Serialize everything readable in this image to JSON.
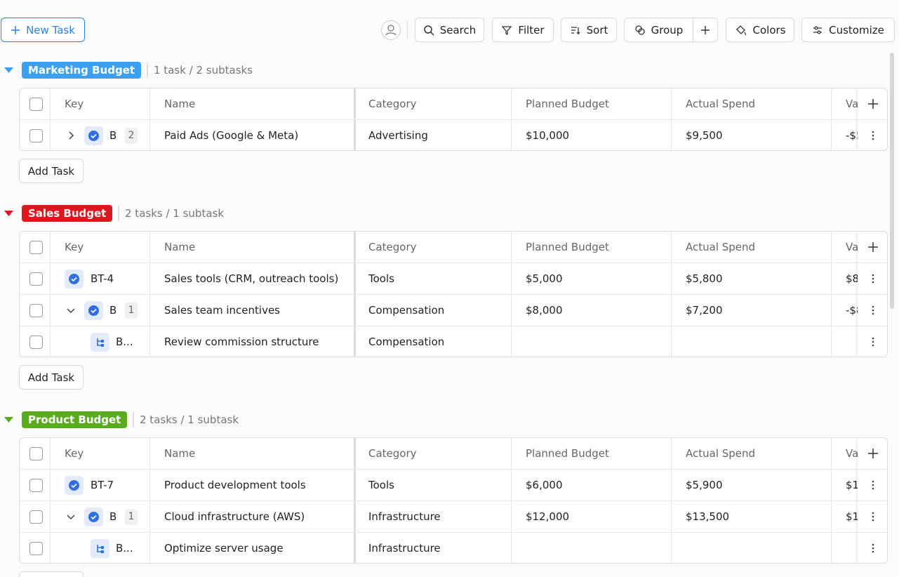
{
  "toolbar": {
    "new_task": "New Task",
    "search": "Search",
    "filter": "Filter",
    "sort": "Sort",
    "group": "Group",
    "colors": "Colors",
    "customize": "Customize"
  },
  "columns": [
    "Key",
    "Name",
    "Category",
    "Planned Budget",
    "Actual Spend",
    "Va"
  ],
  "add_task": "Add Task",
  "groups": [
    {
      "name": "Marketing Budget",
      "color": "#3d9ff0",
      "summary": "1 task / 2 subtasks",
      "rows": [
        {
          "key": "B",
          "subtask_count": 2,
          "name": "Paid Ads (Google & Meta)",
          "category": "Advertising",
          "planned": "$10,000",
          "actual": "$9,500",
          "variance": "-$5"
        }
      ]
    },
    {
      "name": "Sales Budget",
      "color": "#e0151f",
      "summary": "2 tasks / 1 subtask",
      "rows": [
        {
          "key": "BT-4",
          "name": "Sales tools (CRM, outreach tools)",
          "category": "Tools",
          "planned": "$5,000",
          "actual": "$5,800",
          "variance": "$8"
        },
        {
          "key": "B",
          "subtask_count": 1,
          "name": "Sales team incentives",
          "category": "Compensation",
          "planned": "$8,000",
          "actual": "$7,200",
          "variance": "-$8",
          "subtasks": [
            {
              "key": "B...",
              "name": "Review commission structure",
              "category": "Compensation"
            }
          ]
        }
      ]
    },
    {
      "name": "Product Budget",
      "color": "#5aab1e",
      "summary": "2 tasks / 1 subtask",
      "rows": [
        {
          "key": "BT-7",
          "name": "Product development tools",
          "category": "Tools",
          "planned": "$6,000",
          "actual": "$5,900",
          "variance": "$1"
        },
        {
          "key": "B",
          "subtask_count": 1,
          "name": "Cloud infrastructure (AWS)",
          "category": "Infrastructure",
          "planned": "$12,000",
          "actual": "$13,500",
          "variance": "$1",
          "subtasks": [
            {
              "key": "B...",
              "name": "Optimize server usage",
              "category": "Infrastructure"
            }
          ]
        }
      ]
    }
  ]
}
